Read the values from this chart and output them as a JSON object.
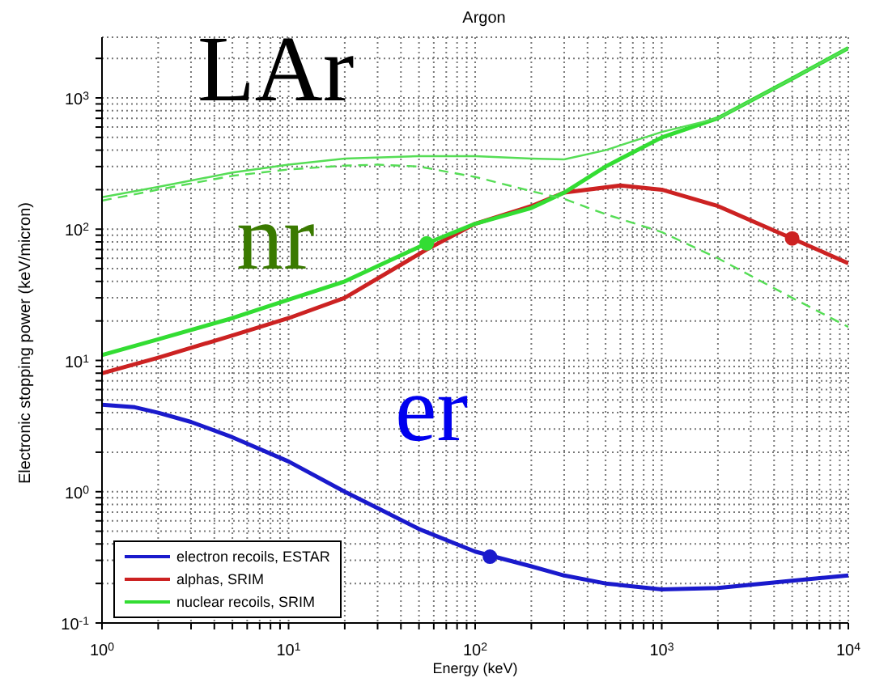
{
  "chart_data": {
    "type": "line",
    "title": "Argon",
    "xlabel": "Energy (keV)",
    "ylabel": "Electronic stopping power (keV/micron)",
    "annotations": [
      "LAr",
      "nr",
      "er"
    ],
    "log": "xy",
    "grid": true,
    "legend": "bottom left",
    "marker": "none",
    "xlim": [
      1,
      10000
    ],
    "ylim": [
      0.1,
      2900
    ],
    "xticks": [
      {
        "value": 1,
        "label": "10$^{0}$"
      },
      {
        "value": 2,
        "label": null
      },
      {
        "value": 3,
        "label": null
      },
      {
        "value": 4,
        "label": null
      },
      {
        "value": 5,
        "label": null
      },
      {
        "value": 6,
        "label": null
      },
      {
        "value": 7,
        "label": null
      },
      {
        "value": 8,
        "label": null
      },
      {
        "value": 9,
        "label": null
      },
      {
        "value": 10,
        "label": "10$^{1}$"
      },
      {
        "value": 20,
        "label": null
      },
      {
        "value": 30,
        "label": null
      },
      {
        "value": 40,
        "label": null
      },
      {
        "value": 50,
        "label": null
      },
      {
        "value": 60,
        "label": null
      },
      {
        "value": 70,
        "label": null
      },
      {
        "value": 80,
        "label": null
      },
      {
        "value": 90,
        "label": null
      },
      {
        "value": 100,
        "label": "10$^{2}$"
      },
      {
        "value": 200,
        "label": null
      },
      {
        "value": 300,
        "label": null
      },
      {
        "value": 400,
        "label": null
      },
      {
        "value": 500,
        "label": null
      },
      {
        "value": 600,
        "label": null
      },
      {
        "value": 700,
        "label": null
      },
      {
        "value": 800,
        "label": null
      },
      {
        "value": 900,
        "label": null
      },
      {
        "value": 1000,
        "label": "10$^{3}$"
      },
      {
        "value": 2000,
        "label": null
      },
      {
        "value": 3000,
        "label": null
      },
      {
        "value": 4000,
        "label": null
      },
      {
        "value": 5000,
        "label": null
      },
      {
        "value": 6000,
        "label": null
      },
      {
        "value": 7000,
        "label": null
      },
      {
        "value": 8000,
        "label": null
      },
      {
        "value": 9000,
        "label": null
      },
      {
        "value": 10000,
        "label": "10$^{4}$"
      }
    ],
    "yticks": [
      {
        "value": 0.1,
        "label": "10$^{-1}$"
      },
      {
        "value": 0.2,
        "label": null
      },
      {
        "value": 0.3,
        "label": null
      },
      {
        "value": 0.4,
        "label": null
      },
      {
        "value": 0.5,
        "label": null
      },
      {
        "value": 0.6,
        "label": null
      },
      {
        "value": 0.7,
        "label": null
      },
      {
        "value": 0.8,
        "label": null
      },
      {
        "value": 0.9,
        "label": null
      },
      {
        "value": 1,
        "label": "10$^{0}$"
      },
      {
        "value": 2,
        "label": null
      },
      {
        "value": 3,
        "label": null
      },
      {
        "value": 4,
        "label": null
      },
      {
        "value": 5,
        "label": null
      },
      {
        "value": 6,
        "label": null
      },
      {
        "value": 7,
        "label": null
      },
      {
        "value": 8,
        "label": null
      },
      {
        "value": 9,
        "label": null
      },
      {
        "value": 10,
        "label": "10$^{1}$"
      },
      {
        "value": 20,
        "label": null
      },
      {
        "value": 30,
        "label": null
      },
      {
        "value": 40,
        "label": null
      },
      {
        "value": 50,
        "label": null
      },
      {
        "value": 60,
        "label": null
      },
      {
        "value": 70,
        "label": null
      },
      {
        "value": 80,
        "label": null
      },
      {
        "value": 90,
        "label": null
      },
      {
        "value": 100,
        "label": "10$^{2}$"
      },
      {
        "value": 200,
        "label": null
      },
      {
        "value": 300,
        "label": null
      },
      {
        "value": 400,
        "label": null
      },
      {
        "value": 500,
        "label": null
      },
      {
        "value": 600,
        "label": null
      },
      {
        "value": 700,
        "label": null
      },
      {
        "value": 800,
        "label": null
      },
      {
        "value": 900,
        "label": null
      },
      {
        "value": 1000,
        "label": "10$^{3}$"
      },
      {
        "value": 2000,
        "label": null
      }
    ],
    "series": [
      {
        "name": "electron recoils, ESTAR",
        "color": "#1a1acc",
        "x": [
          1,
          1.5,
          2,
          3,
          5,
          10,
          20,
          30,
          50,
          100,
          200,
          300,
          500,
          1000,
          2000,
          5000,
          10000
        ],
        "values": [
          4.6,
          4.4,
          4.0,
          3.4,
          2.6,
          1.7,
          1.0,
          0.75,
          0.52,
          0.35,
          0.27,
          0.23,
          0.2,
          0.18,
          0.185,
          0.21,
          0.23
        ]
      },
      {
        "name": "alphas, SRIM",
        "color": "#cc2222",
        "x": [
          1,
          2,
          5,
          10,
          20,
          55,
          100,
          200,
          300,
          600,
          1000,
          2000,
          5000,
          10000
        ],
        "values": [
          8,
          10.5,
          15.5,
          21,
          30,
          70,
          110,
          150,
          190,
          215,
          200,
          150,
          85,
          55
        ]
      },
      {
        "name": "nuclear recoils, SRIM",
        "color": "#33dd33",
        "x": [
          1,
          2,
          5,
          10,
          20,
          55,
          100,
          200,
          300,
          500,
          1000,
          2000,
          5000,
          10000
        ],
        "values": [
          11,
          14.5,
          21,
          29,
          40,
          78,
          110,
          145,
          190,
          300,
          500,
          700,
          1400,
          2400
        ]
      },
      {
        "color": "#55dd55",
        "x": [
          1,
          2,
          5,
          10,
          20,
          50,
          100,
          200,
          300,
          500,
          1000,
          2000,
          5000,
          10000
        ],
        "values": [
          175,
          210,
          270,
          310,
          345,
          360,
          360,
          345,
          340,
          400,
          550,
          700,
          1400,
          2400
        ]
      },
      {
        "color": "#55dd55",
        "line_style": "dashed",
        "x": [
          1,
          2,
          5,
          10,
          20,
          30,
          50,
          100,
          200,
          300,
          500,
          1000,
          2000,
          5000,
          10000
        ],
        "values": [
          165,
          200,
          255,
          285,
          305,
          310,
          300,
          250,
          195,
          170,
          130,
          95,
          60,
          30,
          18
        ]
      },
      {
        "type": "scatter",
        "marker": "circle",
        "color": "#33dd33",
        "x": [
          55
        ],
        "values": [
          78
        ]
      },
      {
        "type": "scatter",
        "marker": "circle",
        "color": "#cc2222",
        "x": [
          5000
        ],
        "values": [
          85
        ]
      },
      {
        "type": "scatter",
        "marker": "circle",
        "color": "#1a1acc",
        "x": [
          120
        ],
        "values": [
          0.32
        ]
      }
    ]
  }
}
